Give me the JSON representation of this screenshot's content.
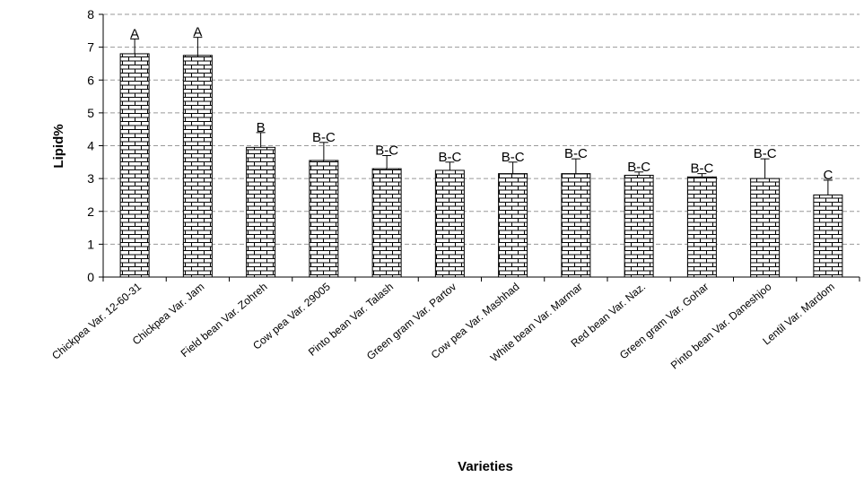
{
  "chart_data": {
    "type": "bar",
    "title": "",
    "xlabel": "Varieties",
    "ylabel": "Lipid%",
    "ylim": [
      0,
      8
    ],
    "yticks": [
      0,
      1,
      2,
      3,
      4,
      5,
      6,
      7,
      8
    ],
    "grid": true,
    "legend": "none",
    "categories": [
      "Chickpea Var. 12-60-31",
      "Chickpea Var. Jam",
      "Field bean Var. Zohreh",
      "Cow pea Var. 29005",
      "Pinto bean Var. Talash",
      "Green gram Var. Partov",
      "Cow pea Var. Mashhad",
      "White bean Var. Marmar",
      "Red bean Var. Naz.",
      "Green gram Var. Gohar",
      "Pinto bean Var. Daneshjoo",
      "Lentil Var. Mardom"
    ],
    "values": [
      6.8,
      6.75,
      3.95,
      3.55,
      3.3,
      3.25,
      3.15,
      3.15,
      3.1,
      3.05,
      3.0,
      2.5
    ],
    "errors": [
      0.45,
      0.55,
      0.45,
      0.55,
      0.4,
      0.25,
      0.35,
      0.45,
      0.1,
      0.1,
      0.6,
      0.45
    ],
    "labels": [
      "A",
      "A",
      "B",
      "B-C",
      "B-C",
      "B-C",
      "B-C",
      "B-C",
      "B-C",
      "B-C",
      "B-C",
      "C"
    ],
    "colors": {
      "bar_fill": "#ffffff",
      "bar_stroke": "#000000",
      "grid": "#999999"
    }
  }
}
